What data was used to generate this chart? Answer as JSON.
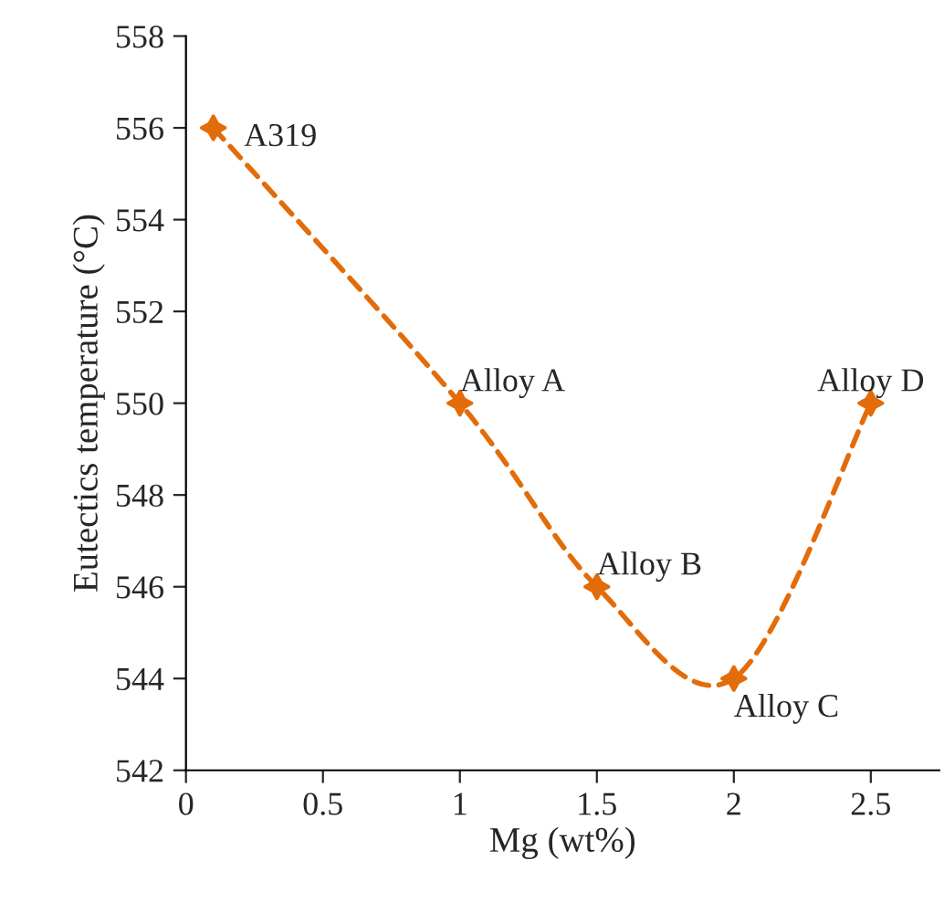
{
  "chart_data": {
    "type": "line",
    "xlabel": "Mg (wt%)",
    "ylabel": "Eutectics temperature (°C)",
    "x": [
      0.1,
      1,
      1.5,
      2,
      2.5
    ],
    "series": [
      {
        "color": "#e36c0a",
        "values": [
          556,
          550,
          546,
          544,
          550
        ]
      }
    ],
    "marker": "star",
    "line_style": "dashed",
    "grid": false,
    "legend": false,
    "xlim": [
      0,
      2.75
    ],
    "xticks": [
      0,
      0.5,
      1,
      1.5,
      2,
      2.5
    ],
    "ylim": [
      542,
      558
    ],
    "yticks": [
      542,
      544,
      546,
      548,
      550,
      552,
      554,
      556,
      558
    ],
    "annotations": [
      {
        "text": "A319",
        "x": 0.1,
        "y": 556
      },
      {
        "text": "Alloy A",
        "x": 1,
        "y": 550
      },
      {
        "text": "Alloy B",
        "x": 1.5,
        "y": 546
      },
      {
        "text": "Alloy C",
        "x": 2,
        "y": 544
      },
      {
        "text": "Alloy D",
        "x": 2.5,
        "y": 550
      }
    ]
  }
}
